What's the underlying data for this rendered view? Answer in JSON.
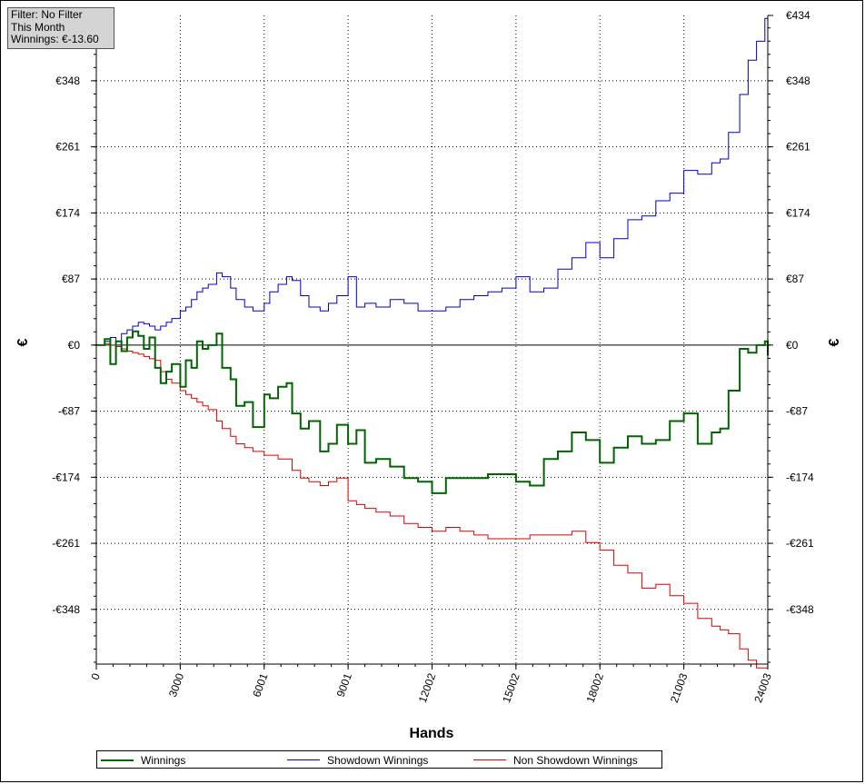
{
  "filter_box": {
    "line1": "Filter: No Filter",
    "line2": "This Month",
    "line3": "Winnings: €-13.60"
  },
  "legend": [
    {
      "label": "Winnings",
      "color": "#006400"
    },
    {
      "label": "Showdown Winnings",
      "color": "#0000cc"
    },
    {
      "label": "Non Showdown Winnings",
      "color": "#dd0000"
    }
  ],
  "chart_data": {
    "type": "line",
    "xlabel": "Hands",
    "ylabel_left": "€",
    "ylabel_right": "€",
    "xlim": [
      0,
      24003
    ],
    "ylim": [
      -420,
      434
    ],
    "x_ticks": [
      0,
      3000,
      6001,
      9001,
      12002,
      15002,
      18002,
      21003,
      24003
    ],
    "x_tick_labels": [
      "0",
      "3000",
      "6001",
      "9001",
      "12002",
      "15002",
      "18002",
      "21003",
      "24003"
    ],
    "y_ticks": [
      434,
      348,
      261,
      174,
      87,
      0,
      -87,
      -174,
      -261,
      -348
    ],
    "y_tick_labels": [
      "€434",
      "€348",
      "€261",
      "€174",
      "€87",
      "€0",
      "-€87",
      "-€174",
      "-€261",
      "-€348"
    ],
    "grid": true,
    "legend_position": "bottom",
    "series": [
      {
        "name": "Winnings",
        "color": "#006400",
        "x": [
          0,
          300,
          500,
          700,
          900,
          1100,
          1300,
          1500,
          1700,
          1900,
          2100,
          2300,
          2500,
          2700,
          3000,
          3200,
          3400,
          3600,
          3800,
          4000,
          4300,
          4500,
          4800,
          5000,
          5300,
          5600,
          6001,
          6200,
          6500,
          6800,
          7000,
          7300,
          7600,
          8000,
          8300,
          8600,
          9001,
          9300,
          9600,
          10000,
          10500,
          11000,
          11500,
          12002,
          12500,
          13000,
          13500,
          14000,
          14500,
          15002,
          15500,
          16000,
          16500,
          17000,
          17500,
          18002,
          18500,
          19000,
          19500,
          20000,
          20500,
          21003,
          21500,
          22000,
          22300,
          22600,
          23000,
          23300,
          23600,
          23900,
          24003
        ],
        "y": [
          0,
          8,
          -25,
          5,
          -8,
          10,
          18,
          12,
          -5,
          10,
          -30,
          -50,
          -35,
          -25,
          -55,
          -20,
          -30,
          5,
          -5,
          0,
          15,
          -30,
          -45,
          -80,
          -75,
          -108,
          -65,
          -70,
          -55,
          -50,
          -90,
          -110,
          -100,
          -140,
          -130,
          -105,
          -130,
          -112,
          -155,
          -150,
          -160,
          -175,
          -180,
          -195,
          -175,
          -175,
          -175,
          -170,
          -170,
          -180,
          -185,
          -150,
          -140,
          -115,
          -125,
          -155,
          -135,
          -120,
          -130,
          -125,
          -100,
          -90,
          -130,
          -115,
          -110,
          -60,
          -5,
          -10,
          0,
          5,
          -13.6
        ]
      },
      {
        "name": "Showdown Winnings",
        "color": "#0000cc",
        "x": [
          0,
          300,
          500,
          700,
          900,
          1100,
          1300,
          1500,
          1700,
          1900,
          2100,
          2300,
          2500,
          2700,
          3000,
          3200,
          3400,
          3600,
          3800,
          4000,
          4300,
          4500,
          4800,
          5000,
          5300,
          5600,
          6001,
          6200,
          6500,
          6800,
          7000,
          7300,
          7600,
          8000,
          8300,
          8600,
          9001,
          9300,
          9600,
          10000,
          10500,
          11000,
          11500,
          12002,
          12500,
          13000,
          13500,
          14000,
          14500,
          15002,
          15500,
          16000,
          16500,
          17000,
          17500,
          18002,
          18500,
          19000,
          19500,
          20000,
          20500,
          21003,
          21500,
          22000,
          22300,
          22600,
          23000,
          23300,
          23600,
          23900,
          24003
        ],
        "y": [
          0,
          5,
          10,
          0,
          15,
          20,
          25,
          30,
          28,
          25,
          20,
          25,
          30,
          35,
          45,
          50,
          60,
          70,
          75,
          80,
          95,
          90,
          75,
          60,
          50,
          45,
          55,
          70,
          80,
          90,
          85,
          65,
          50,
          45,
          55,
          65,
          90,
          50,
          55,
          50,
          60,
          55,
          45,
          45,
          50,
          60,
          65,
          70,
          75,
          90,
          70,
          75,
          100,
          115,
          135,
          115,
          140,
          165,
          170,
          190,
          200,
          230,
          225,
          240,
          245,
          280,
          330,
          375,
          400,
          430,
          410
        ]
      },
      {
        "name": "Non Showdown Winnings",
        "color": "#dd0000",
        "x": [
          0,
          300,
          500,
          700,
          900,
          1100,
          1300,
          1500,
          1700,
          1900,
          2100,
          2300,
          2500,
          2700,
          3000,
          3200,
          3400,
          3600,
          3800,
          4000,
          4300,
          4500,
          4800,
          5000,
          5300,
          5600,
          6001,
          6200,
          6500,
          6800,
          7000,
          7300,
          7600,
          8000,
          8300,
          8600,
          9001,
          9300,
          9600,
          10000,
          10500,
          11000,
          11500,
          12002,
          12500,
          13000,
          13500,
          14000,
          14500,
          15002,
          15500,
          16000,
          16500,
          17000,
          17500,
          18002,
          18500,
          19000,
          19500,
          20000,
          20500,
          21003,
          21500,
          22000,
          22300,
          22600,
          23000,
          23300,
          23600,
          23900,
          24003
        ],
        "y": [
          0,
          2,
          0,
          -2,
          -5,
          -8,
          -10,
          -12,
          -15,
          -18,
          -20,
          -35,
          -45,
          -50,
          -60,
          -65,
          -70,
          -75,
          -80,
          -85,
          -100,
          -110,
          -120,
          -130,
          -135,
          -140,
          -145,
          -145,
          -150,
          -150,
          -165,
          -175,
          -180,
          -185,
          -180,
          -175,
          -205,
          -210,
          -215,
          -220,
          -225,
          -235,
          -240,
          -245,
          -240,
          -245,
          -250,
          -255,
          -255,
          -255,
          -250,
          -250,
          -250,
          -245,
          -260,
          -270,
          -290,
          -300,
          -320,
          -315,
          -330,
          -340,
          -360,
          -370,
          -375,
          -380,
          -400,
          -415,
          -425,
          -425,
          -420
        ]
      }
    ]
  }
}
